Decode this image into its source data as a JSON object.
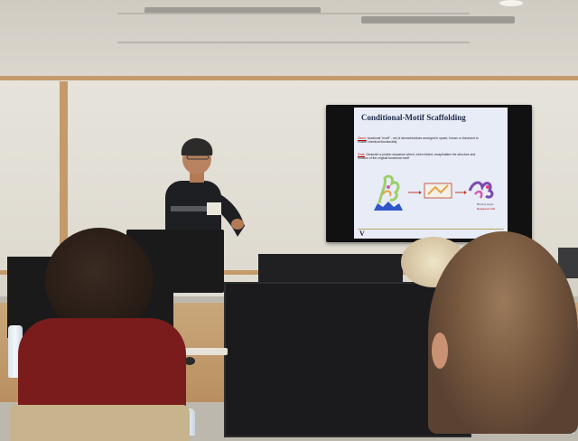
{
  "scene": {
    "description_colors": {
      "wall": "#dcd8cf",
      "board_trim": "#c49a6a",
      "slide_bg": "#e8ecf6",
      "title_color": "#1c2a4a",
      "maroon_sweater": "#7a1c1c"
    }
  },
  "slide": {
    "title": "Conditional-Motif Scaffolding",
    "given_label": "Given:",
    "given_text": "functional \"motif\" - set of atoms/residues arranged in space, known or theorized to enable chemical functionality",
    "goal_label": "Goal:",
    "goal_text": "Generate a protein sequence which, when folded, recapitulates the structure and function of the original functional motif",
    "figure_caption_1": "Binding target",
    "figure_caption_2": "Designed motif",
    "footer_logo": "V"
  }
}
